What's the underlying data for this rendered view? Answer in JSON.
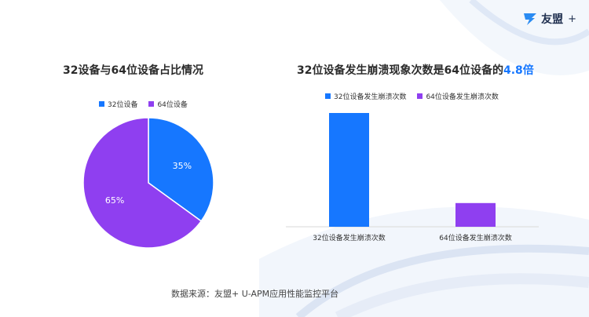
{
  "brand": {
    "name": "友盟",
    "plus": "+"
  },
  "colors": {
    "blue": "#1677ff",
    "purple": "#8f3ff0",
    "text": "#2b2b2b",
    "highlight": "#1677ff"
  },
  "chart_data": [
    {
      "type": "pie",
      "title": "32设备与64位设备占比情况",
      "legend_position": "top",
      "categories": [
        "32位设备",
        "64位设备"
      ],
      "values": [
        35,
        65
      ],
      "labels": [
        "35%",
        "65%"
      ],
      "colors": [
        "#1677ff",
        "#8f3ff0"
      ]
    },
    {
      "type": "bar",
      "title_prefix": "32位设备发生崩溃现象次数是64位设备的",
      "title_highlight": "4.8倍",
      "legend_position": "top",
      "categories": [
        "32位设备发生崩溃次数",
        "64位设备发生崩溃次数"
      ],
      "values": [
        4.8,
        1
      ],
      "colors": [
        "#1677ff",
        "#8f3ff0"
      ],
      "grid": false
    }
  ],
  "source_text": "数据来源：友盟+ U-APM应用性能监控平台"
}
